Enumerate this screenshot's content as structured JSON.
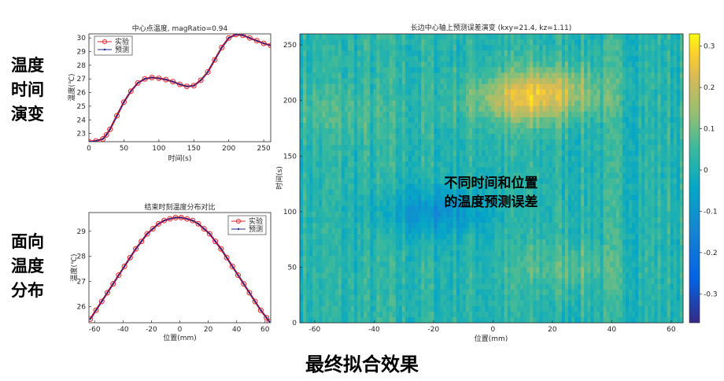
{
  "side_labels": {
    "top": [
      "温度",
      "时间",
      "演变"
    ],
    "bottom": [
      "面向",
      "温度",
      "分布"
    ]
  },
  "bottom_caption": "最终拟合效果",
  "overlay_text": [
    "不同时间和位置",
    "的温度预测误差"
  ],
  "chart_data": [
    {
      "id": "center-temp",
      "type": "line",
      "title": "中心点温度, magRatio=0.94",
      "xlabel": "时间(s)",
      "ylabel": "温度(℃)",
      "xlim": [
        0,
        260
      ],
      "ylim": [
        22.4,
        30.3
      ],
      "xticks": [
        0,
        50,
        100,
        150,
        200,
        250
      ],
      "yticks": [
        23,
        24,
        25,
        26,
        27,
        28,
        29,
        30
      ],
      "legend": {
        "placement": "top-left",
        "entries": [
          "实验",
          "预测"
        ]
      },
      "series": [
        {
          "name": "实验",
          "color": "#e8222a",
          "marker": "circle",
          "x": [
            0,
            10,
            20,
            25,
            30,
            40,
            50,
            60,
            70,
            80,
            90,
            100,
            110,
            120,
            130,
            140,
            150,
            160,
            170,
            180,
            190,
            200,
            210,
            220,
            230,
            240,
            250,
            260
          ],
          "y": [
            22.4,
            22.45,
            22.6,
            22.9,
            23.3,
            24.3,
            25.3,
            26.1,
            26.7,
            27.0,
            27.1,
            27.05,
            26.95,
            26.8,
            26.6,
            26.45,
            26.5,
            26.9,
            27.5,
            28.4,
            29.3,
            30.0,
            30.25,
            30.2,
            30.0,
            29.8,
            29.6,
            29.45
          ]
        },
        {
          "name": "预测",
          "color": "#1f2a8c",
          "marker": "dot",
          "x": [
            0,
            10,
            20,
            25,
            30,
            40,
            50,
            60,
            70,
            80,
            90,
            100,
            110,
            120,
            130,
            140,
            150,
            160,
            170,
            180,
            190,
            200,
            210,
            220,
            230,
            240,
            250,
            260
          ],
          "y": [
            22.4,
            22.45,
            22.6,
            22.9,
            23.3,
            24.3,
            25.3,
            26.1,
            26.7,
            27.0,
            27.1,
            27.05,
            26.95,
            26.8,
            26.6,
            26.45,
            26.5,
            26.9,
            27.5,
            28.4,
            29.3,
            30.0,
            30.25,
            30.2,
            30.0,
            29.8,
            29.6,
            29.45
          ]
        }
      ]
    },
    {
      "id": "end-temp-profile",
      "type": "line",
      "title": "结束时刻温度分布对比",
      "xlabel": "位置(mm)",
      "ylabel": "温度(℃)",
      "xlim": [
        -64,
        64
      ],
      "ylim": [
        25.35,
        29.75
      ],
      "xticks": [
        -60,
        -40,
        -20,
        0,
        20,
        40,
        60
      ],
      "yticks": [
        26,
        27,
        28,
        29
      ],
      "legend": {
        "placement": "top-right",
        "entries": [
          "实验",
          "预测"
        ]
      },
      "series": [
        {
          "name": "实验",
          "color": "#e8222a",
          "marker": "circle",
          "x": [
            -63,
            -59,
            -55,
            -51,
            -47,
            -43,
            -39,
            -35,
            -31,
            -27,
            -23,
            -19,
            -15,
            -11,
            -7,
            -3,
            1,
            5,
            9,
            13,
            17,
            21,
            25,
            29,
            33,
            37,
            41,
            45,
            49,
            53,
            57,
            61,
            63
          ],
          "y": [
            25.5,
            25.85,
            26.2,
            26.55,
            26.9,
            27.25,
            27.6,
            27.95,
            28.3,
            28.6,
            28.9,
            29.1,
            29.3,
            29.43,
            29.5,
            29.55,
            29.55,
            29.5,
            29.43,
            29.3,
            29.1,
            28.9,
            28.6,
            28.3,
            27.95,
            27.6,
            27.25,
            26.9,
            26.55,
            26.2,
            25.85,
            25.55,
            25.4
          ]
        },
        {
          "name": "预测",
          "color": "#1f2a8c",
          "marker": "dot",
          "x": [
            -63,
            -59,
            -55,
            -51,
            -47,
            -43,
            -39,
            -35,
            -31,
            -27,
            -23,
            -19,
            -15,
            -11,
            -7,
            -3,
            1,
            5,
            9,
            13,
            17,
            21,
            25,
            29,
            33,
            37,
            41,
            45,
            49,
            53,
            57,
            61,
            63
          ],
          "y": [
            25.5,
            25.85,
            26.2,
            26.55,
            26.9,
            27.25,
            27.6,
            27.95,
            28.3,
            28.6,
            28.9,
            29.1,
            29.3,
            29.43,
            29.5,
            29.55,
            29.55,
            29.5,
            29.43,
            29.3,
            29.1,
            28.9,
            28.6,
            28.3,
            27.95,
            27.6,
            27.25,
            26.9,
            26.55,
            26.2,
            25.85,
            25.55,
            25.4
          ]
        }
      ]
    },
    {
      "id": "error-heatmap",
      "type": "heatmap",
      "title": "长边中心轴上预测误差演变 (kxy=21.4, kz=1.11)",
      "xlabel": "位置(mm)",
      "ylabel": "时间(s)",
      "xlim": [
        -65,
        64
      ],
      "ylim": [
        0,
        260
      ],
      "xticks": [
        -60,
        -40,
        -20,
        0,
        20,
        40,
        60
      ],
      "yticks": [
        0,
        50,
        100,
        150,
        200,
        250
      ],
      "colorbar": {
        "range": [
          -0.37,
          0.33
        ],
        "ticks": [
          0.3,
          0.2,
          0.1,
          0,
          -0.1,
          -0.2,
          -0.3
        ],
        "colormap": "parula"
      },
      "hotspots": [
        {
          "x": 10,
          "y": 200,
          "value": 0.15
        },
        {
          "x": 20,
          "y": 210,
          "value": 0.12
        },
        {
          "x": -20,
          "y": 100,
          "value": -0.12
        },
        {
          "x": 25,
          "y": 50,
          "value": 0.06
        },
        {
          "x": -55,
          "y": 190,
          "value": 0.05
        }
      ]
    }
  ]
}
